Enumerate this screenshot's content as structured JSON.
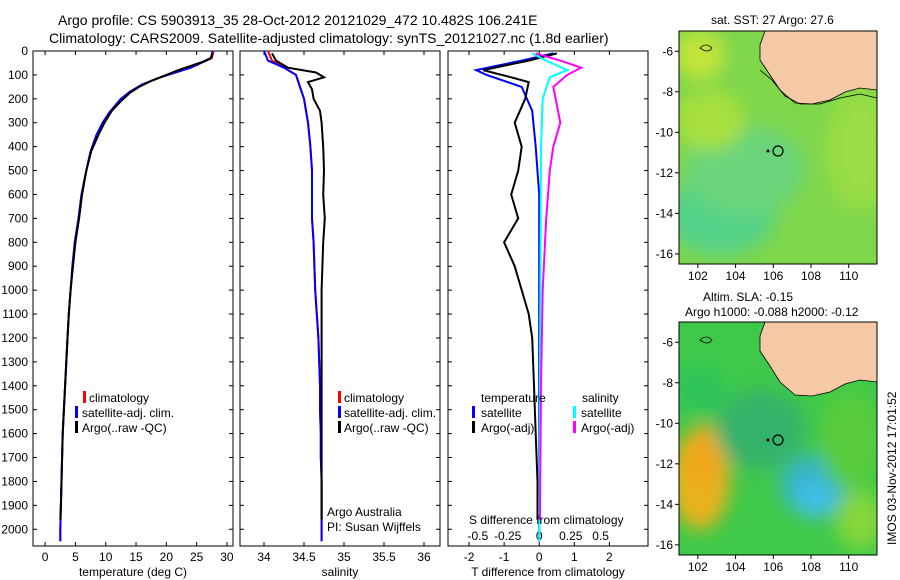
{
  "header": {
    "line1": "Argo profile: CS 5903913_35 28-Oct-2012 20121029_472 10.482S 106.241E",
    "line2": "Climatology: CARS2009. Satellite-adjusted climatology: synTS_20121027.nc (1.8d earlier)"
  },
  "side_label": "IMOS 03-Nov-2012 17:01:52",
  "colors": {
    "climatology": "#ff0000",
    "satellite": "#0000ff",
    "argo": "#000000",
    "sat_salinity": "#00ffff",
    "argo_salinity": "#ff00ff",
    "land": "#f5c9a5"
  },
  "chart_data": [
    {
      "type": "line",
      "id": "temperature",
      "xlabel": "temperature (deg C)",
      "ylabel": "",
      "xlim": [
        -2,
        31
      ],
      "ylim": [
        2070,
        0
      ],
      "xticks": [
        0,
        5,
        10,
        15,
        20,
        25,
        30
      ],
      "yticks": [
        0,
        100,
        200,
        300,
        400,
        500,
        600,
        700,
        800,
        900,
        1000,
        1100,
        1200,
        1300,
        1400,
        1500,
        1600,
        1700,
        1800,
        1900,
        2000
      ],
      "legend": [
        "climatology",
        "satellite-adj. clim.",
        "Argo(..raw -QC)"
      ],
      "series": [
        {
          "name": "climatology",
          "color": "#ff0000",
          "points": [
            [
              27.8,
              0
            ],
            [
              27.5,
              30
            ],
            [
              24,
              70
            ],
            [
              19,
              110
            ],
            [
              16,
              140
            ],
            [
              14,
              170
            ],
            [
              12.5,
              200
            ],
            [
              10.5,
              260
            ],
            [
              9.5,
              300
            ],
            [
              8.5,
              350
            ],
            [
              7.5,
              420
            ],
            [
              6.8,
              500
            ],
            [
              6,
              600
            ],
            [
              5.5,
              700
            ],
            [
              4.9,
              800
            ],
            [
              4.5,
              900
            ],
            [
              4.2,
              1000
            ],
            [
              3.9,
              1100
            ],
            [
              3.7,
              1200
            ],
            [
              3.5,
              1300
            ],
            [
              3.3,
              1400
            ],
            [
              3.1,
              1500
            ],
            [
              2.9,
              1600
            ],
            [
              2.8,
              1700
            ],
            [
              2.7,
              1800
            ],
            [
              2.6,
              1900
            ],
            [
              2.5,
              2000
            ],
            [
              2.5,
              2050
            ]
          ]
        },
        {
          "name": "satellite-adj. clim.",
          "color": "#0000ff",
          "points": [
            [
              27.6,
              0
            ],
            [
              27.4,
              30
            ],
            [
              24,
              70
            ],
            [
              19,
              110
            ],
            [
              16,
              140
            ],
            [
              14,
              170
            ],
            [
              12.5,
              200
            ],
            [
              10.5,
              260
            ],
            [
              9.5,
              300
            ],
            [
              8.5,
              350
            ],
            [
              7.5,
              420
            ],
            [
              6.8,
              500
            ],
            [
              6,
              600
            ],
            [
              5.5,
              700
            ],
            [
              4.9,
              800
            ],
            [
              4.5,
              900
            ],
            [
              4.2,
              1000
            ],
            [
              3.9,
              1100
            ],
            [
              3.7,
              1200
            ],
            [
              3.5,
              1300
            ],
            [
              3.3,
              1400
            ],
            [
              3.1,
              1500
            ],
            [
              2.9,
              1600
            ],
            [
              2.8,
              1700
            ],
            [
              2.7,
              1800
            ],
            [
              2.6,
              1900
            ],
            [
              2.5,
              2000
            ],
            [
              2.5,
              2050
            ]
          ]
        },
        {
          "name": "Argo(..raw -QC)",
          "color": "#000000",
          "points": [
            [
              27.6,
              10
            ],
            [
              27.3,
              30
            ],
            [
              26,
              45
            ],
            [
              22,
              80
            ],
            [
              20,
              100
            ],
            [
              17.5,
              125
            ],
            [
              15.5,
              150
            ],
            [
              14,
              175
            ],
            [
              12.5,
              210
            ],
            [
              11,
              250
            ],
            [
              9.8,
              300
            ],
            [
              8.8,
              350
            ],
            [
              7.6,
              420
            ],
            [
              6.8,
              500
            ],
            [
              6.1,
              600
            ],
            [
              5.6,
              700
            ],
            [
              5,
              800
            ],
            [
              4.6,
              900
            ],
            [
              4.2,
              1000
            ],
            [
              3.9,
              1100
            ],
            [
              3.7,
              1200
            ],
            [
              3.5,
              1300
            ],
            [
              3.3,
              1400
            ],
            [
              3.1,
              1500
            ],
            [
              2.9,
              1600
            ],
            [
              2.8,
              1700
            ],
            [
              2.7,
              1800
            ],
            [
              2.6,
              1900
            ],
            [
              2.5,
              1960
            ]
          ]
        }
      ]
    },
    {
      "type": "line",
      "id": "salinity",
      "xlabel": "salinity",
      "xlim": [
        33.7,
        36.2
      ],
      "ylim": [
        2070,
        0
      ],
      "xticks": [
        34,
        34.5,
        35,
        35.5,
        36
      ],
      "legend": [
        "climatology",
        "satellite-adj. clim.",
        "Argo(..raw -QC)"
      ],
      "annotations": [
        "Argo Australia",
        "PI: Susan Wijffels"
      ],
      "series": [
        {
          "name": "climatology",
          "color": "#ff0000",
          "points": [
            [
              34.05,
              0
            ],
            [
              34.1,
              40
            ],
            [
              34.25,
              70
            ],
            [
              34.4,
              100
            ],
            [
              34.45,
              150
            ],
            [
              34.5,
              200
            ],
            [
              34.55,
              300
            ],
            [
              34.58,
              400
            ],
            [
              34.6,
              500
            ],
            [
              34.6,
              600
            ],
            [
              34.6,
              700
            ],
            [
              34.62,
              800
            ],
            [
              34.63,
              900
            ],
            [
              34.64,
              1000
            ],
            [
              34.66,
              1100
            ],
            [
              34.68,
              1200
            ],
            [
              34.69,
              1300
            ],
            [
              34.7,
              1400
            ],
            [
              34.7,
              1500
            ],
            [
              34.71,
              1600
            ],
            [
              34.71,
              1700
            ],
            [
              34.72,
              1800
            ],
            [
              34.72,
              1900
            ],
            [
              34.72,
              2050
            ]
          ]
        },
        {
          "name": "satellite-adj. clim.",
          "color": "#0000ff",
          "points": [
            [
              34.0,
              0
            ],
            [
              34.05,
              40
            ],
            [
              34.25,
              70
            ],
            [
              34.4,
              100
            ],
            [
              34.45,
              150
            ],
            [
              34.5,
              200
            ],
            [
              34.55,
              300
            ],
            [
              34.58,
              400
            ],
            [
              34.6,
              500
            ],
            [
              34.6,
              600
            ],
            [
              34.6,
              700
            ],
            [
              34.62,
              800
            ],
            [
              34.63,
              900
            ],
            [
              34.64,
              1000
            ],
            [
              34.66,
              1100
            ],
            [
              34.68,
              1200
            ],
            [
              34.69,
              1300
            ],
            [
              34.7,
              1400
            ],
            [
              34.7,
              1500
            ],
            [
              34.71,
              1600
            ],
            [
              34.71,
              1700
            ],
            [
              34.72,
              1800
            ],
            [
              34.72,
              1900
            ],
            [
              34.72,
              2050
            ]
          ]
        },
        {
          "name": "Argo(..raw -QC)",
          "color": "#000000",
          "points": [
            [
              34.1,
              10
            ],
            [
              34.15,
              40
            ],
            [
              34.3,
              70
            ],
            [
              34.65,
              90
            ],
            [
              34.75,
              110
            ],
            [
              34.55,
              130
            ],
            [
              34.6,
              160
            ],
            [
              34.62,
              200
            ],
            [
              34.7,
              250
            ],
            [
              34.72,
              300
            ],
            [
              34.74,
              400
            ],
            [
              34.75,
              500
            ],
            [
              34.74,
              600
            ],
            [
              34.76,
              700
            ],
            [
              34.74,
              800
            ],
            [
              34.73,
              900
            ],
            [
              34.72,
              1000
            ],
            [
              34.72,
              1100
            ],
            [
              34.72,
              1200
            ],
            [
              34.72,
              1300
            ],
            [
              34.72,
              1400
            ],
            [
              34.72,
              1500
            ],
            [
              34.72,
              1600
            ],
            [
              34.72,
              1700
            ],
            [
              34.72,
              1800
            ],
            [
              34.72,
              1900
            ],
            [
              34.72,
              1960
            ]
          ]
        }
      ]
    },
    {
      "type": "line",
      "id": "difference",
      "xlabel": "T difference from climatology",
      "xlabel_top": "S difference from climatology",
      "xlim": [
        -2.6,
        3.1
      ],
      "ylim": [
        2070,
        0
      ],
      "xticks": [
        -2,
        -1,
        0,
        1,
        2
      ],
      "xticks_top": [
        "-0.5",
        "-0.25",
        "0",
        "0.25",
        "0.5"
      ],
      "legend_temperature_title": "temperature",
      "legend_salinity_title": "salinity",
      "legend_temperature": [
        "satellite",
        "Argo(-adj)"
      ],
      "legend_salinity": [
        "satellite",
        "Argo(-adj)"
      ],
      "series": [
        {
          "name": "satellite",
          "color": "#0000ff",
          "points": [
            [
              0.4,
              10
            ],
            [
              -0.5,
              40
            ],
            [
              -1.8,
              80
            ],
            [
              -1.5,
              100
            ],
            [
              -0.5,
              150
            ],
            [
              -0.2,
              250
            ],
            [
              -0.1,
              400
            ],
            [
              0,
              600
            ],
            [
              0,
              2050
            ]
          ]
        },
        {
          "name": "Argo(-adj)",
          "color": "#000000",
          "points": [
            [
              0.5,
              10
            ],
            [
              -0.3,
              40
            ],
            [
              -1.6,
              80
            ],
            [
              -0.8,
              110
            ],
            [
              -0.3,
              130
            ],
            [
              -0.4,
              200
            ],
            [
              -0.7,
              300
            ],
            [
              -0.5,
              400
            ],
            [
              -0.6,
              500
            ],
            [
              -0.8,
              600
            ],
            [
              -0.6,
              700
            ],
            [
              -1,
              800
            ],
            [
              -0.7,
              900
            ],
            [
              -0.5,
              1000
            ],
            [
              -0.3,
              1100
            ],
            [
              -0.2,
              1200
            ],
            [
              -0.15,
              1400
            ],
            [
              -0.1,
              1600
            ],
            [
              -0.05,
              1800
            ],
            [
              -0.05,
              1960
            ]
          ]
        },
        {
          "name": "satellite",
          "color": "#00ffff",
          "points": [
            [
              -0.2,
              10
            ],
            [
              0.2,
              40
            ],
            [
              0.8,
              80
            ],
            [
              0.3,
              110
            ],
            [
              0.1,
              200
            ],
            [
              0.05,
              400
            ],
            [
              0,
              2050
            ]
          ]
        },
        {
          "name": "Argo(-adj)",
          "color": "#ff00ff",
          "points": [
            [
              -0.1,
              10
            ],
            [
              0.6,
              40
            ],
            [
              1.2,
              70
            ],
            [
              0.8,
              100
            ],
            [
              0.4,
              150
            ],
            [
              0.6,
              300
            ],
            [
              0.4,
              400
            ],
            [
              0.3,
              500
            ],
            [
              0.2,
              700
            ],
            [
              0.1,
              1000
            ],
            [
              0.05,
              1400
            ],
            [
              0.02,
              1960
            ]
          ]
        }
      ]
    },
    {
      "type": "heatmap",
      "id": "sst_map",
      "title": "sat. SST: 27  Argo: 27.6",
      "xlim": [
        101,
        111.5
      ],
      "ylim": [
        -16.5,
        -5
      ],
      "xticks": [
        102,
        104,
        106,
        108,
        110
      ],
      "yticks": [
        -6,
        -8,
        -10,
        -12,
        -14,
        -16
      ],
      "marker": {
        "lon": 106.24,
        "lat": -10.48
      }
    },
    {
      "type": "heatmap",
      "id": "sla_map",
      "title": "Altim. SLA: -0.15",
      "subtitle": "Argo h1000: -0.088  h2000: -0.12",
      "xlim": [
        101,
        111.5
      ],
      "ylim": [
        -16.5,
        -5
      ],
      "xticks": [
        102,
        104,
        106,
        108,
        110
      ],
      "yticks": [
        -6,
        -8,
        -10,
        -12,
        -14,
        -16
      ],
      "marker": {
        "lon": 106.24,
        "lat": -10.48
      }
    }
  ]
}
